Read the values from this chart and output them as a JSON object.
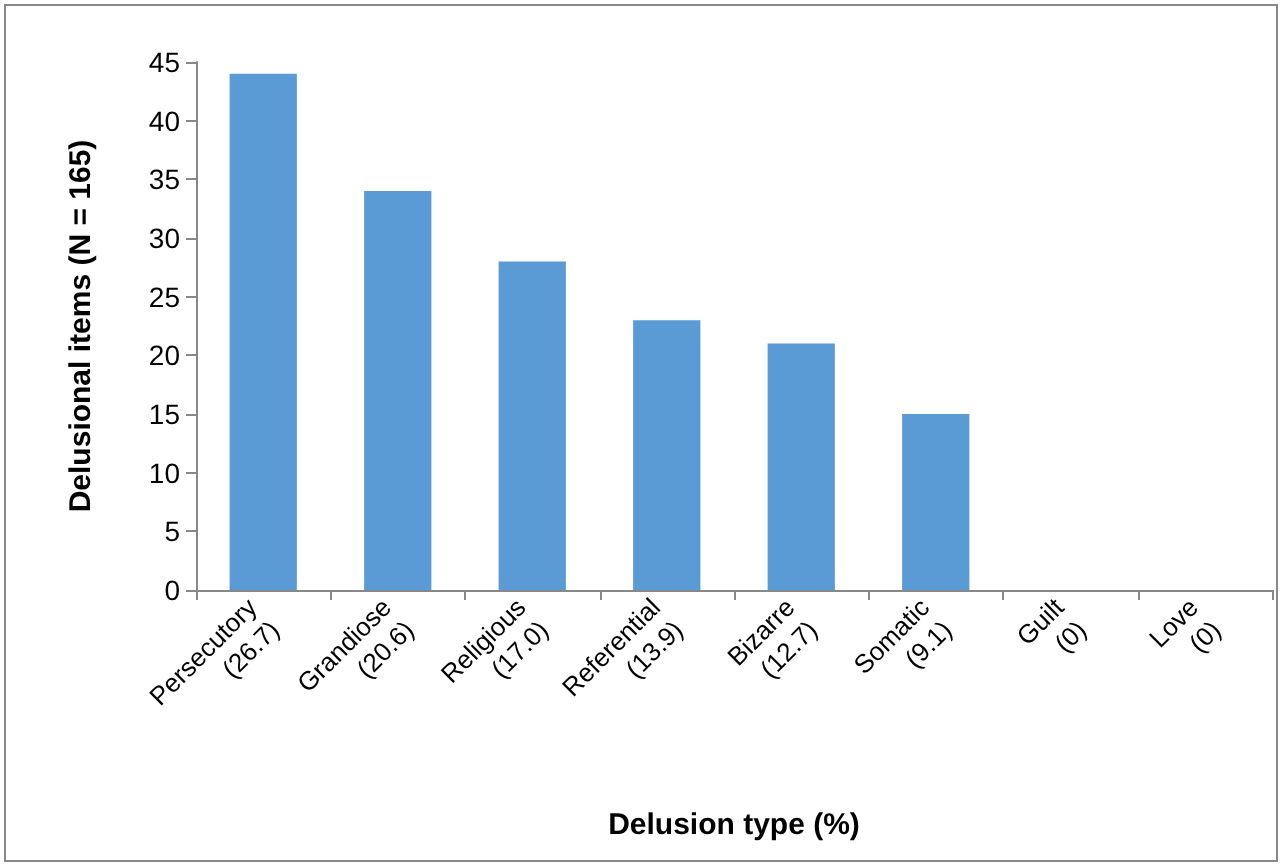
{
  "chart_data": {
    "type": "bar",
    "xlabel": "Delusion type (%)",
    "ylabel": "Delusional items (N = 165)",
    "categories": [
      "Persecutory\n(26.7)",
      "Grandiose\n(20.6)",
      "Religious\n(17.0)",
      "Referential\n(13.9)",
      "Bizarre\n(12.7)",
      "Somatic\n(9.1)",
      "Guilt\n(0)",
      "Love\n(0)"
    ],
    "values": [
      44,
      34,
      28,
      23,
      21,
      15,
      0,
      0
    ],
    "color": "#5b9bd5",
    "ylim": [
      0,
      45
    ],
    "yticks": [
      0,
      5,
      10,
      15,
      20,
      25,
      30,
      35,
      40,
      45
    ]
  }
}
